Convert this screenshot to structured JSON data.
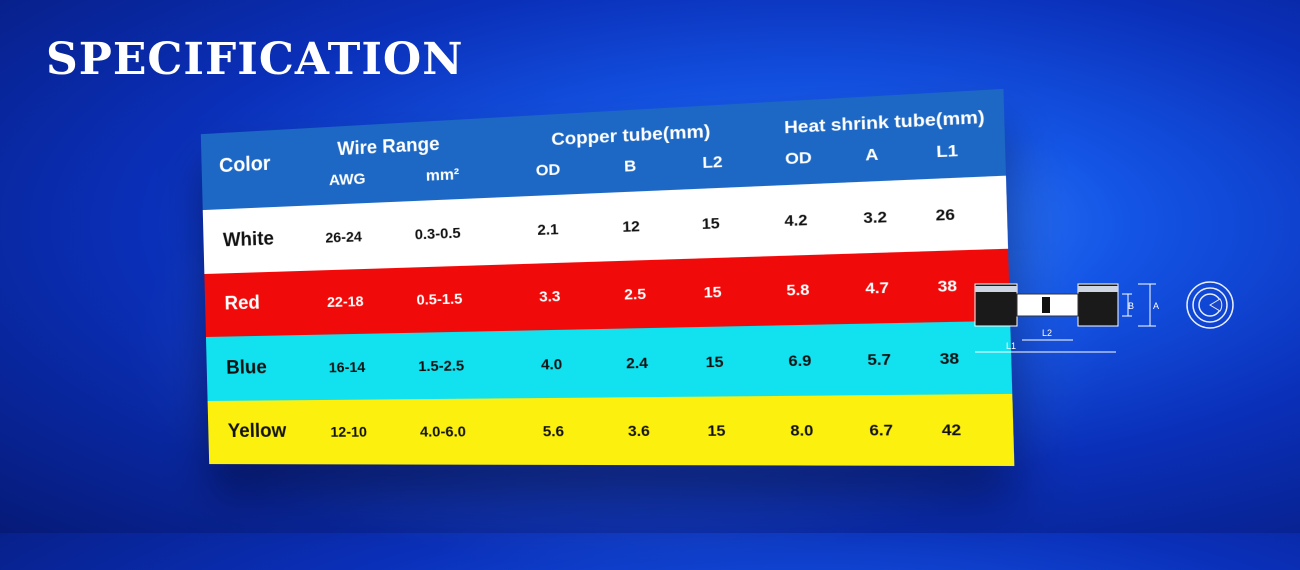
{
  "title": "SPECIFICATION",
  "table": {
    "headers": {
      "color": "Color",
      "wire_range": "Wire Range",
      "awg": "AWG",
      "mm2": "mm²",
      "copper_tube": "Copper tube(mm)",
      "heat_shrink": "Heat shrink tube(mm)",
      "od": "OD",
      "b": "B",
      "l2": "L2",
      "od2": "OD",
      "a": "A",
      "l1": "L1"
    },
    "rows": [
      {
        "name": "White",
        "awg": "26-24",
        "mm2": "0.3-0.5",
        "od": "2.1",
        "b": "12",
        "l2": "15",
        "hod": "4.2",
        "a": "3.2",
        "l1": "26",
        "bg": "#ffffff",
        "fg": "#111111"
      },
      {
        "name": "Red",
        "awg": "22-18",
        "mm2": "0.5-1.5",
        "od": "3.3",
        "b": "2.5",
        "l2": "15",
        "hod": "5.8",
        "a": "4.7",
        "l1": "38",
        "bg": "#f00a0a",
        "fg": "#ffffff"
      },
      {
        "name": "Blue",
        "awg": "16-14",
        "mm2": "1.5-2.5",
        "od": "4.0",
        "b": "2.4",
        "l2": "15",
        "hod": "6.9",
        "a": "5.7",
        "l1": "38",
        "bg": "#12e2ef",
        "fg": "#111111"
      },
      {
        "name": "Yellow",
        "awg": "12-10",
        "mm2": "4.0-6.0",
        "od": "5.6",
        "b": "3.6",
        "l2": "15",
        "hod": "8.0",
        "a": "6.7",
        "l1": "42",
        "bg": "#fcf10e",
        "fg": "#111111"
      }
    ]
  },
  "diagram": {
    "labels": {
      "b": "B",
      "a": "A",
      "l2": "L2",
      "l1": "L1"
    },
    "icon": "end-view-circle-icon"
  }
}
